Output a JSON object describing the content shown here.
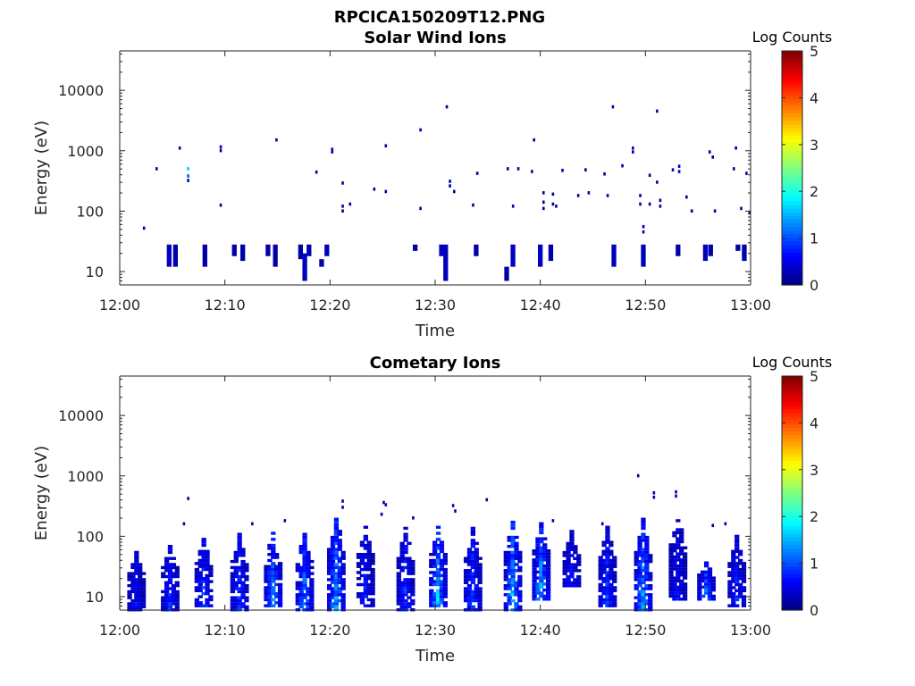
{
  "figure": {
    "title": "RPCICA150209T12.PNG"
  },
  "colors": {
    "colormap": "jet",
    "axis": "#262626",
    "background": "#ffffff"
  },
  "chart_data": [
    {
      "type": "heatmap",
      "title": "Solar Wind Ions",
      "xlabel": "Time",
      "ylabel": "Energy (eV)",
      "x_tick_labels": [
        "12:00",
        "12:10",
        "12:20",
        "12:30",
        "12:40",
        "12:50",
        "13:00"
      ],
      "y_tick_labels": [
        "10",
        "100",
        "1000",
        "10000"
      ],
      "y_scale": "log",
      "ylim": [
        6,
        45000
      ],
      "xlim": [
        "12:00",
        "13:00"
      ],
      "colorbar": {
        "label": "Log Counts",
        "ticks": [
          "0",
          "1",
          "2",
          "3",
          "4",
          "5"
        ],
        "range": [
          0,
          5
        ]
      },
      "cells": [
        {
          "t": 2.3,
          "e": 52,
          "v": 0.2
        },
        {
          "t": 3.5,
          "e": 500,
          "v": 0.2
        },
        {
          "t": 5.7,
          "e": 1100,
          "v": 0.3
        },
        {
          "t": 6.5,
          "e": 500,
          "v": 1.6
        },
        {
          "t": 6.5,
          "e": 380,
          "v": 1.0
        },
        {
          "t": 6.5,
          "e": 320,
          "v": 0.3
        },
        {
          "t": 9.6,
          "e": 125,
          "v": 0.2
        },
        {
          "t": 9.6,
          "e": 1150,
          "v": 0.3
        },
        {
          "t": 9.6,
          "e": 1000,
          "v": 0.2
        },
        {
          "t": 14.9,
          "e": 1500,
          "v": 0.2
        },
        {
          "t": 18.7,
          "e": 440,
          "v": 0.2
        },
        {
          "t": 20.2,
          "e": 1050,
          "v": 0.3
        },
        {
          "t": 20.2,
          "e": 950,
          "v": 0.2
        },
        {
          "t": 21.2,
          "e": 290,
          "v": 0.2
        },
        {
          "t": 21.2,
          "e": 120,
          "v": 0.2
        },
        {
          "t": 21.2,
          "e": 100,
          "v": 0.2
        },
        {
          "t": 21.9,
          "e": 130,
          "v": 0.2
        },
        {
          "t": 24.2,
          "e": 230,
          "v": 0.2
        },
        {
          "t": 25.3,
          "e": 1200,
          "v": 0.2
        },
        {
          "t": 25.3,
          "e": 210,
          "v": 0.2
        },
        {
          "t": 28.6,
          "e": 2200,
          "v": 0.3
        },
        {
          "t": 28.6,
          "e": 110,
          "v": 0.2
        },
        {
          "t": 31.1,
          "e": 5300,
          "v": 0.2
        },
        {
          "t": 31.4,
          "e": 310,
          "v": 0.2
        },
        {
          "t": 31.4,
          "e": 260,
          "v": 0.2
        },
        {
          "t": 31.8,
          "e": 210,
          "v": 0.2
        },
        {
          "t": 33.6,
          "e": 125,
          "v": 0.2
        },
        {
          "t": 34.0,
          "e": 420,
          "v": 0.2
        },
        {
          "t": 36.9,
          "e": 500,
          "v": 0.2
        },
        {
          "t": 37.4,
          "e": 120,
          "v": 0.3
        },
        {
          "t": 37.9,
          "e": 500,
          "v": 0.2
        },
        {
          "t": 39.4,
          "e": 1500,
          "v": 0.2
        },
        {
          "t": 39.2,
          "e": 450,
          "v": 0.2
        },
        {
          "t": 40.3,
          "e": 200,
          "v": 0.2
        },
        {
          "t": 40.3,
          "e": 140,
          "v": 0.2
        },
        {
          "t": 40.3,
          "e": 110,
          "v": 0.2
        },
        {
          "t": 41.2,
          "e": 190,
          "v": 0.2
        },
        {
          "t": 41.2,
          "e": 130,
          "v": 0.2
        },
        {
          "t": 41.5,
          "e": 120,
          "v": 0.2
        },
        {
          "t": 42.1,
          "e": 470,
          "v": 0.2
        },
        {
          "t": 43.6,
          "e": 180,
          "v": 0.2
        },
        {
          "t": 44.3,
          "e": 480,
          "v": 0.2
        },
        {
          "t": 44.6,
          "e": 200,
          "v": 0.2
        },
        {
          "t": 46.1,
          "e": 410,
          "v": 0.2
        },
        {
          "t": 46.4,
          "e": 180,
          "v": 0.2
        },
        {
          "t": 46.9,
          "e": 5300,
          "v": 0.2
        },
        {
          "t": 47.8,
          "e": 560,
          "v": 0.2
        },
        {
          "t": 48.8,
          "e": 1100,
          "v": 0.3
        },
        {
          "t": 48.8,
          "e": 950,
          "v": 0.2
        },
        {
          "t": 49.5,
          "e": 180,
          "v": 0.2
        },
        {
          "t": 49.5,
          "e": 130,
          "v": 0.2
        },
        {
          "t": 49.8,
          "e": 55,
          "v": 0.3
        },
        {
          "t": 49.8,
          "e": 45,
          "v": 0.2
        },
        {
          "t": 50.4,
          "e": 390,
          "v": 0.2
        },
        {
          "t": 50.4,
          "e": 130,
          "v": 0.2
        },
        {
          "t": 51.1,
          "e": 4500,
          "v": 0.2
        },
        {
          "t": 51.1,
          "e": 300,
          "v": 0.2
        },
        {
          "t": 51.4,
          "e": 150,
          "v": 0.2
        },
        {
          "t": 51.4,
          "e": 120,
          "v": 0.2
        },
        {
          "t": 52.6,
          "e": 480,
          "v": 0.2
        },
        {
          "t": 53.2,
          "e": 550,
          "v": 0.3
        },
        {
          "t": 53.2,
          "e": 450,
          "v": 0.3
        },
        {
          "t": 53.9,
          "e": 170,
          "v": 0.2
        },
        {
          "t": 54.4,
          "e": 100,
          "v": 0.2
        },
        {
          "t": 56.1,
          "e": 950,
          "v": 0.2
        },
        {
          "t": 56.4,
          "e": 780,
          "v": 0.2
        },
        {
          "t": 56.6,
          "e": 100,
          "v": 0.2
        },
        {
          "t": 58.6,
          "e": 1100,
          "v": 0.2
        },
        {
          "t": 58.4,
          "e": 500,
          "v": 0.2
        },
        {
          "t": 59.6,
          "e": 420,
          "v": 0.2
        },
        {
          "t": 59.1,
          "e": 110,
          "v": 0.2
        },
        {
          "t": 59.9,
          "e": 95,
          "v": 0.2
        }
      ],
      "streaks": [
        {
          "t": 4.7,
          "e0": 12,
          "e1": 28,
          "v": 0.3
        },
        {
          "t": 5.3,
          "e0": 12,
          "e1": 28,
          "v": 0.2
        },
        {
          "t": 8.1,
          "e0": 12,
          "e1": 28,
          "v": 0.2
        },
        {
          "t": 10.9,
          "e0": 18,
          "e1": 28,
          "v": 0.2
        },
        {
          "t": 11.7,
          "e0": 15,
          "e1": 28,
          "v": 0.2
        },
        {
          "t": 14.1,
          "e0": 18,
          "e1": 28,
          "v": 0.2
        },
        {
          "t": 14.8,
          "e0": 12,
          "e1": 28,
          "v": 0.2
        },
        {
          "t": 17.2,
          "e0": 16,
          "e1": 28,
          "v": 0.2
        },
        {
          "t": 17.6,
          "e0": 7,
          "e1": 20,
          "v": 0.3
        },
        {
          "t": 18.0,
          "e0": 18,
          "e1": 28,
          "v": 0.2
        },
        {
          "t": 19.2,
          "e0": 12,
          "e1": 16,
          "v": 0.2
        },
        {
          "t": 19.7,
          "e0": 18,
          "e1": 28,
          "v": 0.3
        },
        {
          "t": 28.1,
          "e0": 22,
          "e1": 28,
          "v": 0.2
        },
        {
          "t": 30.6,
          "e0": 18,
          "e1": 28,
          "v": 0.3
        },
        {
          "t": 31.0,
          "e0": 7,
          "e1": 28,
          "v": 0.3
        },
        {
          "t": 33.9,
          "e0": 18,
          "e1": 28,
          "v": 0.2
        },
        {
          "t": 36.8,
          "e0": 7,
          "e1": 12,
          "v": 0.2
        },
        {
          "t": 37.4,
          "e0": 12,
          "e1": 28,
          "v": 0.3
        },
        {
          "t": 40.0,
          "e0": 12,
          "e1": 28,
          "v": 0.3
        },
        {
          "t": 41.0,
          "e0": 15,
          "e1": 28,
          "v": 0.2
        },
        {
          "t": 47.0,
          "e0": 12,
          "e1": 28,
          "v": 0.3
        },
        {
          "t": 49.8,
          "e0": 12,
          "e1": 28,
          "v": 0.3
        },
        {
          "t": 53.1,
          "e0": 18,
          "e1": 28,
          "v": 0.2
        },
        {
          "t": 55.7,
          "e0": 15,
          "e1": 28,
          "v": 0.3
        },
        {
          "t": 56.2,
          "e0": 18,
          "e1": 28,
          "v": 0.2
        },
        {
          "t": 58.8,
          "e0": 22,
          "e1": 28,
          "v": 0.2
        },
        {
          "t": 59.4,
          "e0": 15,
          "e1": 28,
          "v": 0.2
        }
      ]
    },
    {
      "type": "heatmap",
      "title": "Cometary Ions",
      "xlabel": "Time",
      "ylabel": "Energy (eV)",
      "x_tick_labels": [
        "12:00",
        "12:10",
        "12:20",
        "12:30",
        "12:40",
        "12:50",
        "13:00"
      ],
      "y_tick_labels": [
        "10",
        "100",
        "1000",
        "10000"
      ],
      "y_scale": "log",
      "ylim": [
        6,
        45000
      ],
      "xlim": [
        "12:00",
        "13:00"
      ],
      "colorbar": {
        "label": "Log Counts",
        "ticks": [
          "0",
          "1",
          "2",
          "3",
          "4",
          "5"
        ],
        "range": [
          0,
          5
        ]
      },
      "bursts": [
        {
          "t": 1.6,
          "lo": 6,
          "hi": 55,
          "peak": 0.6
        },
        {
          "t": 4.8,
          "lo": 6,
          "hi": 75,
          "peak": 0.8
        },
        {
          "t": 8.0,
          "lo": 7,
          "hi": 100,
          "peak": 1.0
        },
        {
          "t": 11.4,
          "lo": 6,
          "hi": 110,
          "peak": 0.9
        },
        {
          "t": 14.6,
          "lo": 7,
          "hi": 120,
          "peak": 1.4
        },
        {
          "t": 17.6,
          "lo": 6,
          "hi": 120,
          "peak": 1.3
        },
        {
          "t": 20.6,
          "lo": 6,
          "hi": 260,
          "peak": 1.5
        },
        {
          "t": 23.4,
          "lo": 7,
          "hi": 150,
          "peak": 0.7
        },
        {
          "t": 27.2,
          "lo": 6,
          "hi": 140,
          "peak": 0.9
        },
        {
          "t": 30.3,
          "lo": 7,
          "hi": 150,
          "peak": 1.6
        },
        {
          "t": 33.6,
          "lo": 6,
          "hi": 140,
          "peak": 1.0
        },
        {
          "t": 37.4,
          "lo": 6,
          "hi": 200,
          "peak": 1.6
        },
        {
          "t": 40.1,
          "lo": 9,
          "hi": 170,
          "peak": 1.6
        },
        {
          "t": 43.0,
          "lo": 15,
          "hi": 120,
          "peak": 0.6
        },
        {
          "t": 46.4,
          "lo": 7,
          "hi": 140,
          "peak": 0.9
        },
        {
          "t": 49.8,
          "lo": 6,
          "hi": 200,
          "peak": 1.6
        },
        {
          "t": 53.1,
          "lo": 9,
          "hi": 250,
          "peak": 0.6
        },
        {
          "t": 55.8,
          "lo": 9,
          "hi": 40,
          "peak": 1.3
        },
        {
          "t": 58.7,
          "lo": 7,
          "hi": 100,
          "peak": 0.8
        }
      ],
      "cells": [
        {
          "t": 6.5,
          "e": 420,
          "v": 0.2
        },
        {
          "t": 6.1,
          "e": 160,
          "v": 0.2
        },
        {
          "t": 49.3,
          "e": 1000,
          "v": 0.2
        },
        {
          "t": 50.8,
          "e": 520,
          "v": 0.2
        },
        {
          "t": 50.8,
          "e": 440,
          "v": 0.2
        },
        {
          "t": 52.9,
          "e": 540,
          "v": 0.2
        },
        {
          "t": 52.9,
          "e": 460,
          "v": 0.2
        },
        {
          "t": 34.9,
          "e": 400,
          "v": 0.2
        },
        {
          "t": 25.1,
          "e": 360,
          "v": 0.2
        },
        {
          "t": 25.3,
          "e": 330,
          "v": 0.2
        },
        {
          "t": 21.2,
          "e": 380,
          "v": 0.2
        },
        {
          "t": 21.2,
          "e": 300,
          "v": 0.2
        },
        {
          "t": 31.7,
          "e": 320,
          "v": 0.2
        },
        {
          "t": 31.9,
          "e": 260,
          "v": 0.2
        },
        {
          "t": 15.7,
          "e": 180,
          "v": 0.2
        },
        {
          "t": 12.6,
          "e": 160,
          "v": 0.2
        },
        {
          "t": 24.9,
          "e": 230,
          "v": 0.2
        },
        {
          "t": 27.9,
          "e": 200,
          "v": 0.2
        },
        {
          "t": 41.2,
          "e": 180,
          "v": 0.2
        },
        {
          "t": 45.9,
          "e": 160,
          "v": 0.2
        },
        {
          "t": 56.4,
          "e": 150,
          "v": 0.2
        },
        {
          "t": 57.6,
          "e": 160,
          "v": 0.2
        }
      ]
    }
  ]
}
